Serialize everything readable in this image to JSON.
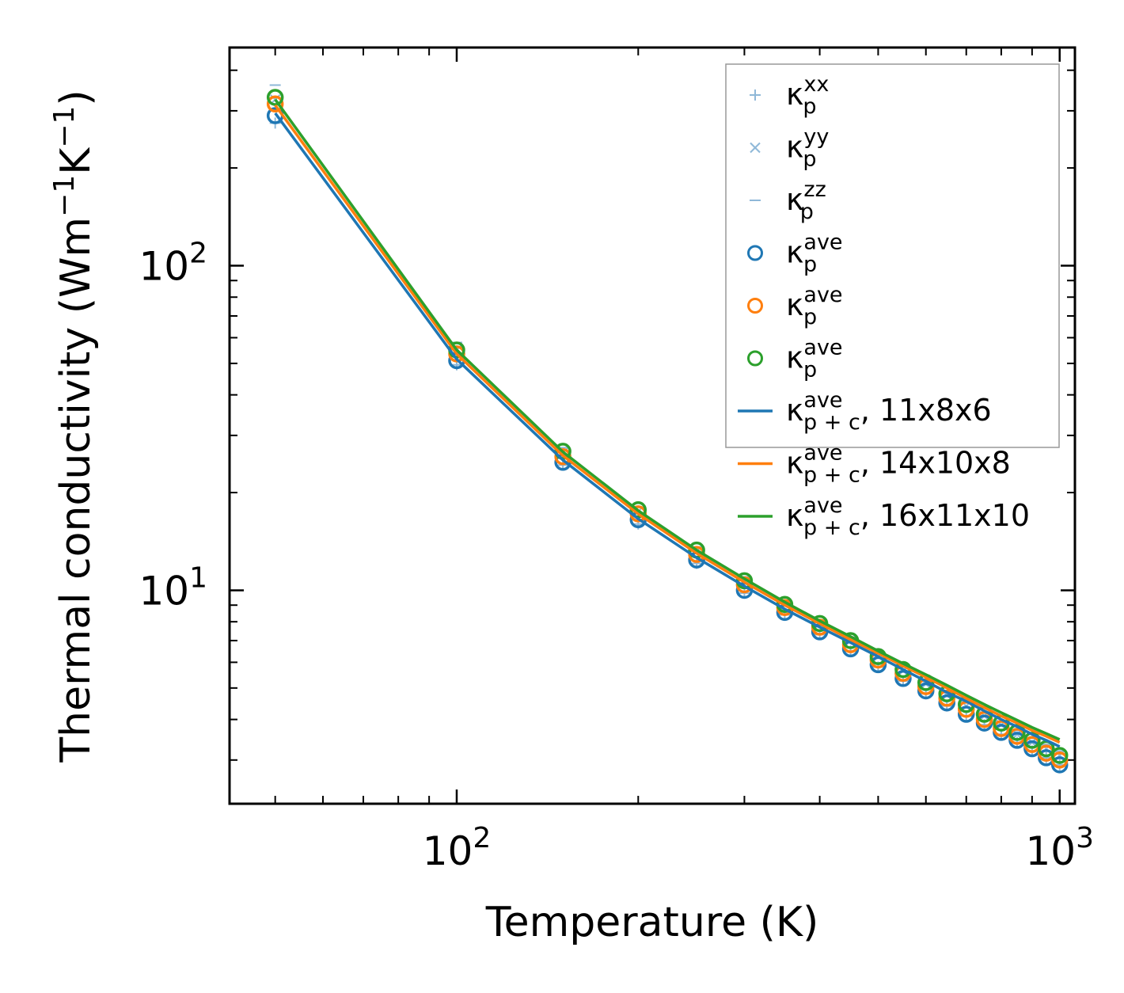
{
  "chart_data": {
    "type": "line",
    "title": "",
    "xlabel": "Temperature (K)",
    "ylabel_main": "Thermal conductivity (Wm",
    "ylabel_exp1": "−1",
    "ylabel_mid": "K",
    "ylabel_exp2": "−1",
    "ylabel_end": ")",
    "xscale": "log",
    "yscale": "log",
    "xlim": [
      42,
      1060
    ],
    "ylim": [
      2.2,
      470
    ],
    "xticks": [
      {
        "value": 100,
        "base": "10",
        "exp": "2"
      },
      {
        "value": 1000,
        "base": "10",
        "exp": "3"
      }
    ],
    "yticks": [
      {
        "value": 10,
        "base": "10",
        "exp": "1"
      },
      {
        "value": 100,
        "base": "10",
        "exp": "2"
      }
    ],
    "legend_position": "top-right",
    "colors": {
      "blue": "#1f77b4",
      "orange": "#ff7f0e",
      "green": "#2ca02c",
      "light_blue": "#8fb8d8"
    },
    "x": [
      50,
      100,
      150,
      200,
      250,
      300,
      350,
      400,
      450,
      500,
      550,
      600,
      650,
      700,
      750,
      800,
      850,
      900,
      950,
      1000
    ],
    "series": [
      {
        "name": "kpxx",
        "label": "κ",
        "sub": "p",
        "sup": "xx",
        "suffix": "",
        "kind": "plus",
        "color": "#8fb8d8",
        "values": [
          275,
          49.5,
          24.3,
          16.0,
          12.1,
          9.8,
          8.4,
          7.3,
          6.5,
          5.8,
          5.25,
          4.8,
          4.4,
          4.1,
          3.85,
          3.6,
          3.4,
          3.2,
          3.05,
          2.9
        ]
      },
      {
        "name": "kpyy",
        "label": "κ",
        "sub": "p",
        "sup": "yy",
        "suffix": "",
        "kind": "cross",
        "color": "#8fb8d8",
        "values": [
          325,
          55,
          26.5,
          17.5,
          13.2,
          10.7,
          9.1,
          7.9,
          7.0,
          6.25,
          5.65,
          5.15,
          4.75,
          4.4,
          4.1,
          3.85,
          3.6,
          3.4,
          3.25,
          3.1
        ]
      },
      {
        "name": "kpzz",
        "label": "κ",
        "sub": "p",
        "sup": "zz",
        "suffix": "",
        "kind": "dash",
        "color": "#8fb8d8",
        "values": [
          360,
          58,
          27.5,
          18.0,
          13.6,
          11.0,
          9.3,
          8.1,
          7.15,
          6.4,
          5.8,
          5.3,
          4.85,
          4.5,
          4.2,
          3.95,
          3.7,
          3.5,
          3.35,
          3.2
        ]
      },
      {
        "name": "kpave-11x8x6",
        "label": "κ",
        "sub": "p",
        "sup": "ave",
        "suffix": "",
        "kind": "circle",
        "color": "#1f77b4",
        "values": [
          290,
          51,
          24.8,
          16.5,
          12.4,
          10.0,
          8.55,
          7.45,
          6.6,
          5.9,
          5.35,
          4.9,
          4.5,
          4.15,
          3.9,
          3.65,
          3.45,
          3.25,
          3.05,
          2.9
        ]
      },
      {
        "name": "kpave-14x10x8",
        "label": "κ",
        "sub": "p",
        "sup": "ave",
        "suffix": "",
        "kind": "circle",
        "color": "#ff7f0e",
        "values": [
          315,
          53.5,
          25.8,
          17.2,
          12.9,
          10.4,
          8.85,
          7.7,
          6.8,
          6.1,
          5.55,
          5.05,
          4.65,
          4.3,
          4.0,
          3.75,
          3.55,
          3.35,
          3.15,
          3.0
        ]
      },
      {
        "name": "kpave-16x11x10",
        "label": "κ",
        "sub": "p",
        "sup": "ave",
        "suffix": "",
        "kind": "circle",
        "color": "#2ca02c",
        "values": [
          330,
          55,
          26.8,
          17.7,
          13.3,
          10.7,
          9.05,
          7.9,
          7.0,
          6.25,
          5.7,
          5.2,
          4.8,
          4.45,
          4.15,
          3.9,
          3.65,
          3.45,
          3.25,
          3.1
        ]
      },
      {
        "name": "kpc-11x8x6",
        "label": "κ",
        "sub": "p + c",
        "sup": "ave",
        "suffix": ", 11x8x6",
        "kind": "line",
        "color": "#1f77b4",
        "values": [
          295,
          51.5,
          25.2,
          16.6,
          12.6,
          10.3,
          8.75,
          7.7,
          6.9,
          6.25,
          5.7,
          5.25,
          4.85,
          4.55,
          4.25,
          4.0,
          3.8,
          3.6,
          3.45,
          3.3
        ]
      },
      {
        "name": "kpc-14x10x8",
        "label": "κ",
        "sub": "p + c",
        "sup": "ave",
        "suffix": ", 14x10x8",
        "kind": "line",
        "color": "#ff7f0e",
        "values": [
          312,
          53.5,
          26.0,
          17.2,
          13.0,
          10.6,
          9.0,
          7.9,
          7.05,
          6.4,
          5.85,
          5.4,
          5.0,
          4.65,
          4.35,
          4.1,
          3.9,
          3.7,
          3.55,
          3.4
        ]
      },
      {
        "name": "kpc-16x11x10",
        "label": "κ",
        "sub": "p + c",
        "sup": "ave",
        "suffix": ", 16x11x10",
        "kind": "line",
        "color": "#2ca02c",
        "values": [
          325,
          55,
          26.7,
          17.6,
          13.3,
          10.85,
          9.2,
          8.05,
          7.2,
          6.5,
          5.95,
          5.5,
          5.1,
          4.75,
          4.45,
          4.2,
          3.98,
          3.78,
          3.62,
          3.47
        ]
      }
    ]
  }
}
